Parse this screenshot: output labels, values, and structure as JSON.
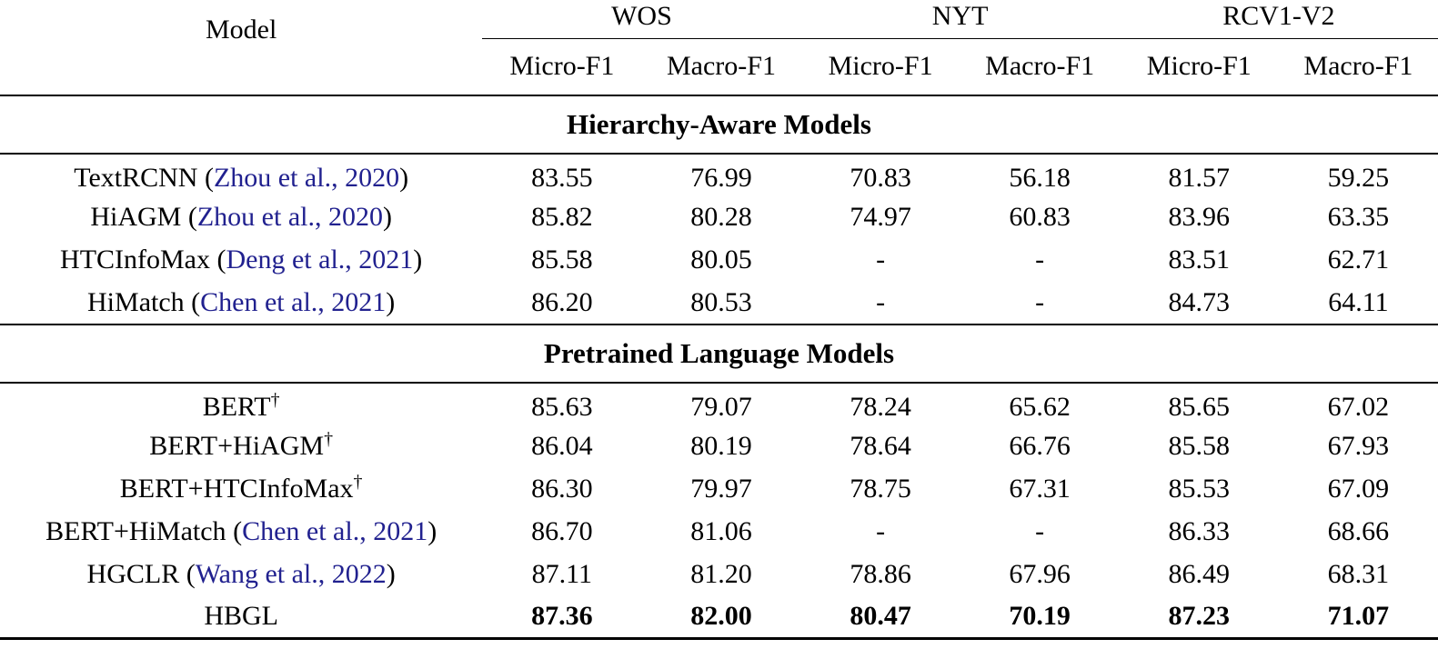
{
  "table": {
    "model_header": "Model",
    "groups": [
      {
        "label": "WOS"
      },
      {
        "label": "NYT"
      },
      {
        "label": "RCV1-V2"
      }
    ],
    "subheaders": [
      "Micro-F1",
      "Macro-F1",
      "Micro-F1",
      "Macro-F1",
      "Micro-F1",
      "Macro-F1"
    ],
    "sections": [
      {
        "title": "Hierarchy-Aware Models",
        "rows": [
          {
            "name": "TextRCNN",
            "cite_open": " (",
            "cite_text": "Zhou et al., 2020",
            "cite_close": ")",
            "values": [
              "83.55",
              "76.99",
              "70.83",
              "56.18",
              "81.57",
              "59.25"
            ]
          },
          {
            "name": "HiAGM",
            "cite_open": " (",
            "cite_text": "Zhou et al., 2020",
            "cite_close": ")",
            "values": [
              "85.82",
              "80.28",
              "74.97",
              "60.83",
              "83.96",
              "63.35"
            ]
          },
          {
            "name": "HTCInfoMax",
            "cite_open": " (",
            "cite_text": "Deng et al., 2021",
            "cite_close": ")",
            "values": [
              "85.58",
              "80.05",
              "-",
              "-",
              "83.51",
              "62.71"
            ]
          },
          {
            "name": "HiMatch",
            "cite_open": " (",
            "cite_text": "Chen et al., 2021",
            "cite_close": ")",
            "values": [
              "86.20",
              "80.53",
              "-",
              "-",
              "84.73",
              "64.11"
            ]
          }
        ]
      },
      {
        "title": "Pretrained Language Models",
        "rows": [
          {
            "name": "BERT",
            "dagger": "†",
            "values": [
              "85.63",
              "79.07",
              "78.24",
              "65.62",
              "85.65",
              "67.02"
            ]
          },
          {
            "name": "BERT+HiAGM",
            "dagger": "†",
            "values": [
              "86.04",
              "80.19",
              "78.64",
              "66.76",
              "85.58",
              "67.93"
            ]
          },
          {
            "name": "BERT+HTCInfoMax",
            "dagger": "†",
            "values": [
              "86.30",
              "79.97",
              "78.75",
              "67.31",
              "85.53",
              "67.09"
            ]
          },
          {
            "name": "BERT+HiMatch",
            "cite_open": " (",
            "cite_text": "Chen et al., 2021",
            "cite_close": ")",
            "values": [
              "86.70",
              "81.06",
              "-",
              "-",
              "86.33",
              "68.66"
            ]
          },
          {
            "name": "HGCLR",
            "cite_open": " (",
            "cite_text": "Wang et al., 2022",
            "cite_close": ")",
            "values": [
              "87.11",
              "81.20",
              "78.86",
              "67.96",
              "86.49",
              "68.31"
            ]
          },
          {
            "name": "HBGL",
            "values": [
              "87.36",
              "82.00",
              "80.47",
              "70.19",
              "87.23",
              "71.07"
            ]
          }
        ]
      }
    ]
  },
  "colors": {
    "citation": "#21218F",
    "text": "#000000",
    "background": "#ffffff"
  }
}
